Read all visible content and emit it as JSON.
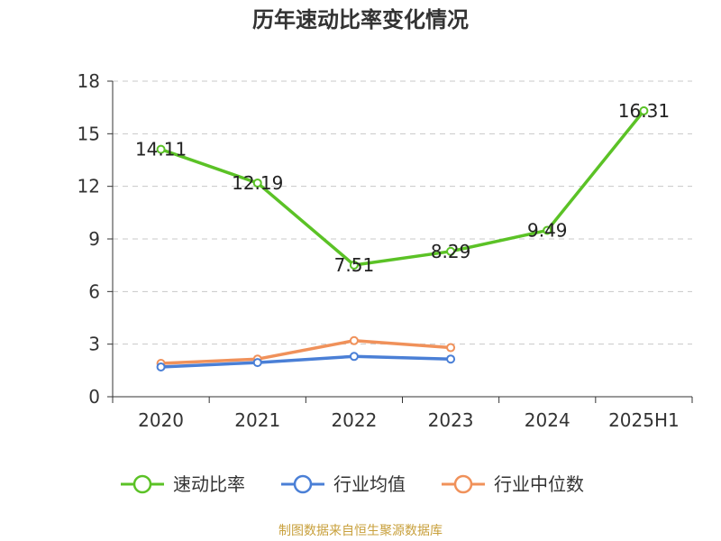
{
  "chart_data": {
    "type": "line",
    "title": "历年速动比率变化情况",
    "categories": [
      "2020",
      "2021",
      "2022",
      "2023",
      "2024",
      "2025H1"
    ],
    "ylim": [
      0,
      18
    ],
    "yticks": [
      0,
      3,
      6,
      9,
      12,
      15,
      18
    ],
    "grid": true,
    "legend_position": "bottom",
    "series": [
      {
        "name": "速动比率",
        "color": "#5bc226",
        "values": [
          14.11,
          12.19,
          7.51,
          8.29,
          9.49,
          16.31
        ],
        "labels": [
          "14.11",
          "12.19",
          "7.51",
          "8.29",
          "9.49",
          "16.31"
        ]
      },
      {
        "name": "行业均值",
        "color": "#4a7fd6",
        "values": [
          1.7,
          1.95,
          2.3,
          2.15,
          null,
          null
        ]
      },
      {
        "name": "行业中位数",
        "color": "#f0915a",
        "values": [
          1.9,
          2.15,
          3.2,
          2.8,
          null,
          null
        ]
      }
    ]
  },
  "source_text": "制图数据来自恒生聚源数据库"
}
